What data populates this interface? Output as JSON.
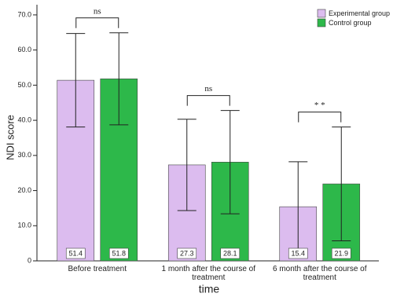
{
  "chart_data": {
    "type": "bar",
    "y_label": "NDI score",
    "x_label": "time",
    "categories": [
      "Before treatment",
      "1 month after the course of treatment",
      "6 month after the course of treatment"
    ],
    "series": [
      {
        "name": "Experimental group",
        "color": "#dcbcef",
        "values": [
          51.4,
          27.3,
          15.4
        ],
        "errors": [
          13.3,
          13.0,
          12.8
        ]
      },
      {
        "name": "Control group",
        "color": "#2db84a",
        "values": [
          51.8,
          28.1,
          21.9
        ],
        "errors": [
          13.1,
          14.7,
          16.2
        ]
      }
    ],
    "annotations": [
      "ns",
      "ns",
      "* *"
    ],
    "ylim": [
      0,
      72
    ],
    "yticks": [
      0,
      {
        "value": 10,
        "label": "10.0"
      },
      {
        "value": 20,
        "label": "20.0"
      },
      {
        "value": 30,
        "label": "30.0"
      },
      {
        "value": 40,
        "label": "40.0"
      },
      {
        "value": 50,
        "label": "50.0"
      },
      {
        "value": 60,
        "label": "60.0"
      },
      {
        "value": 70,
        "label": "70.0"
      }
    ],
    "legend": "top-right"
  }
}
